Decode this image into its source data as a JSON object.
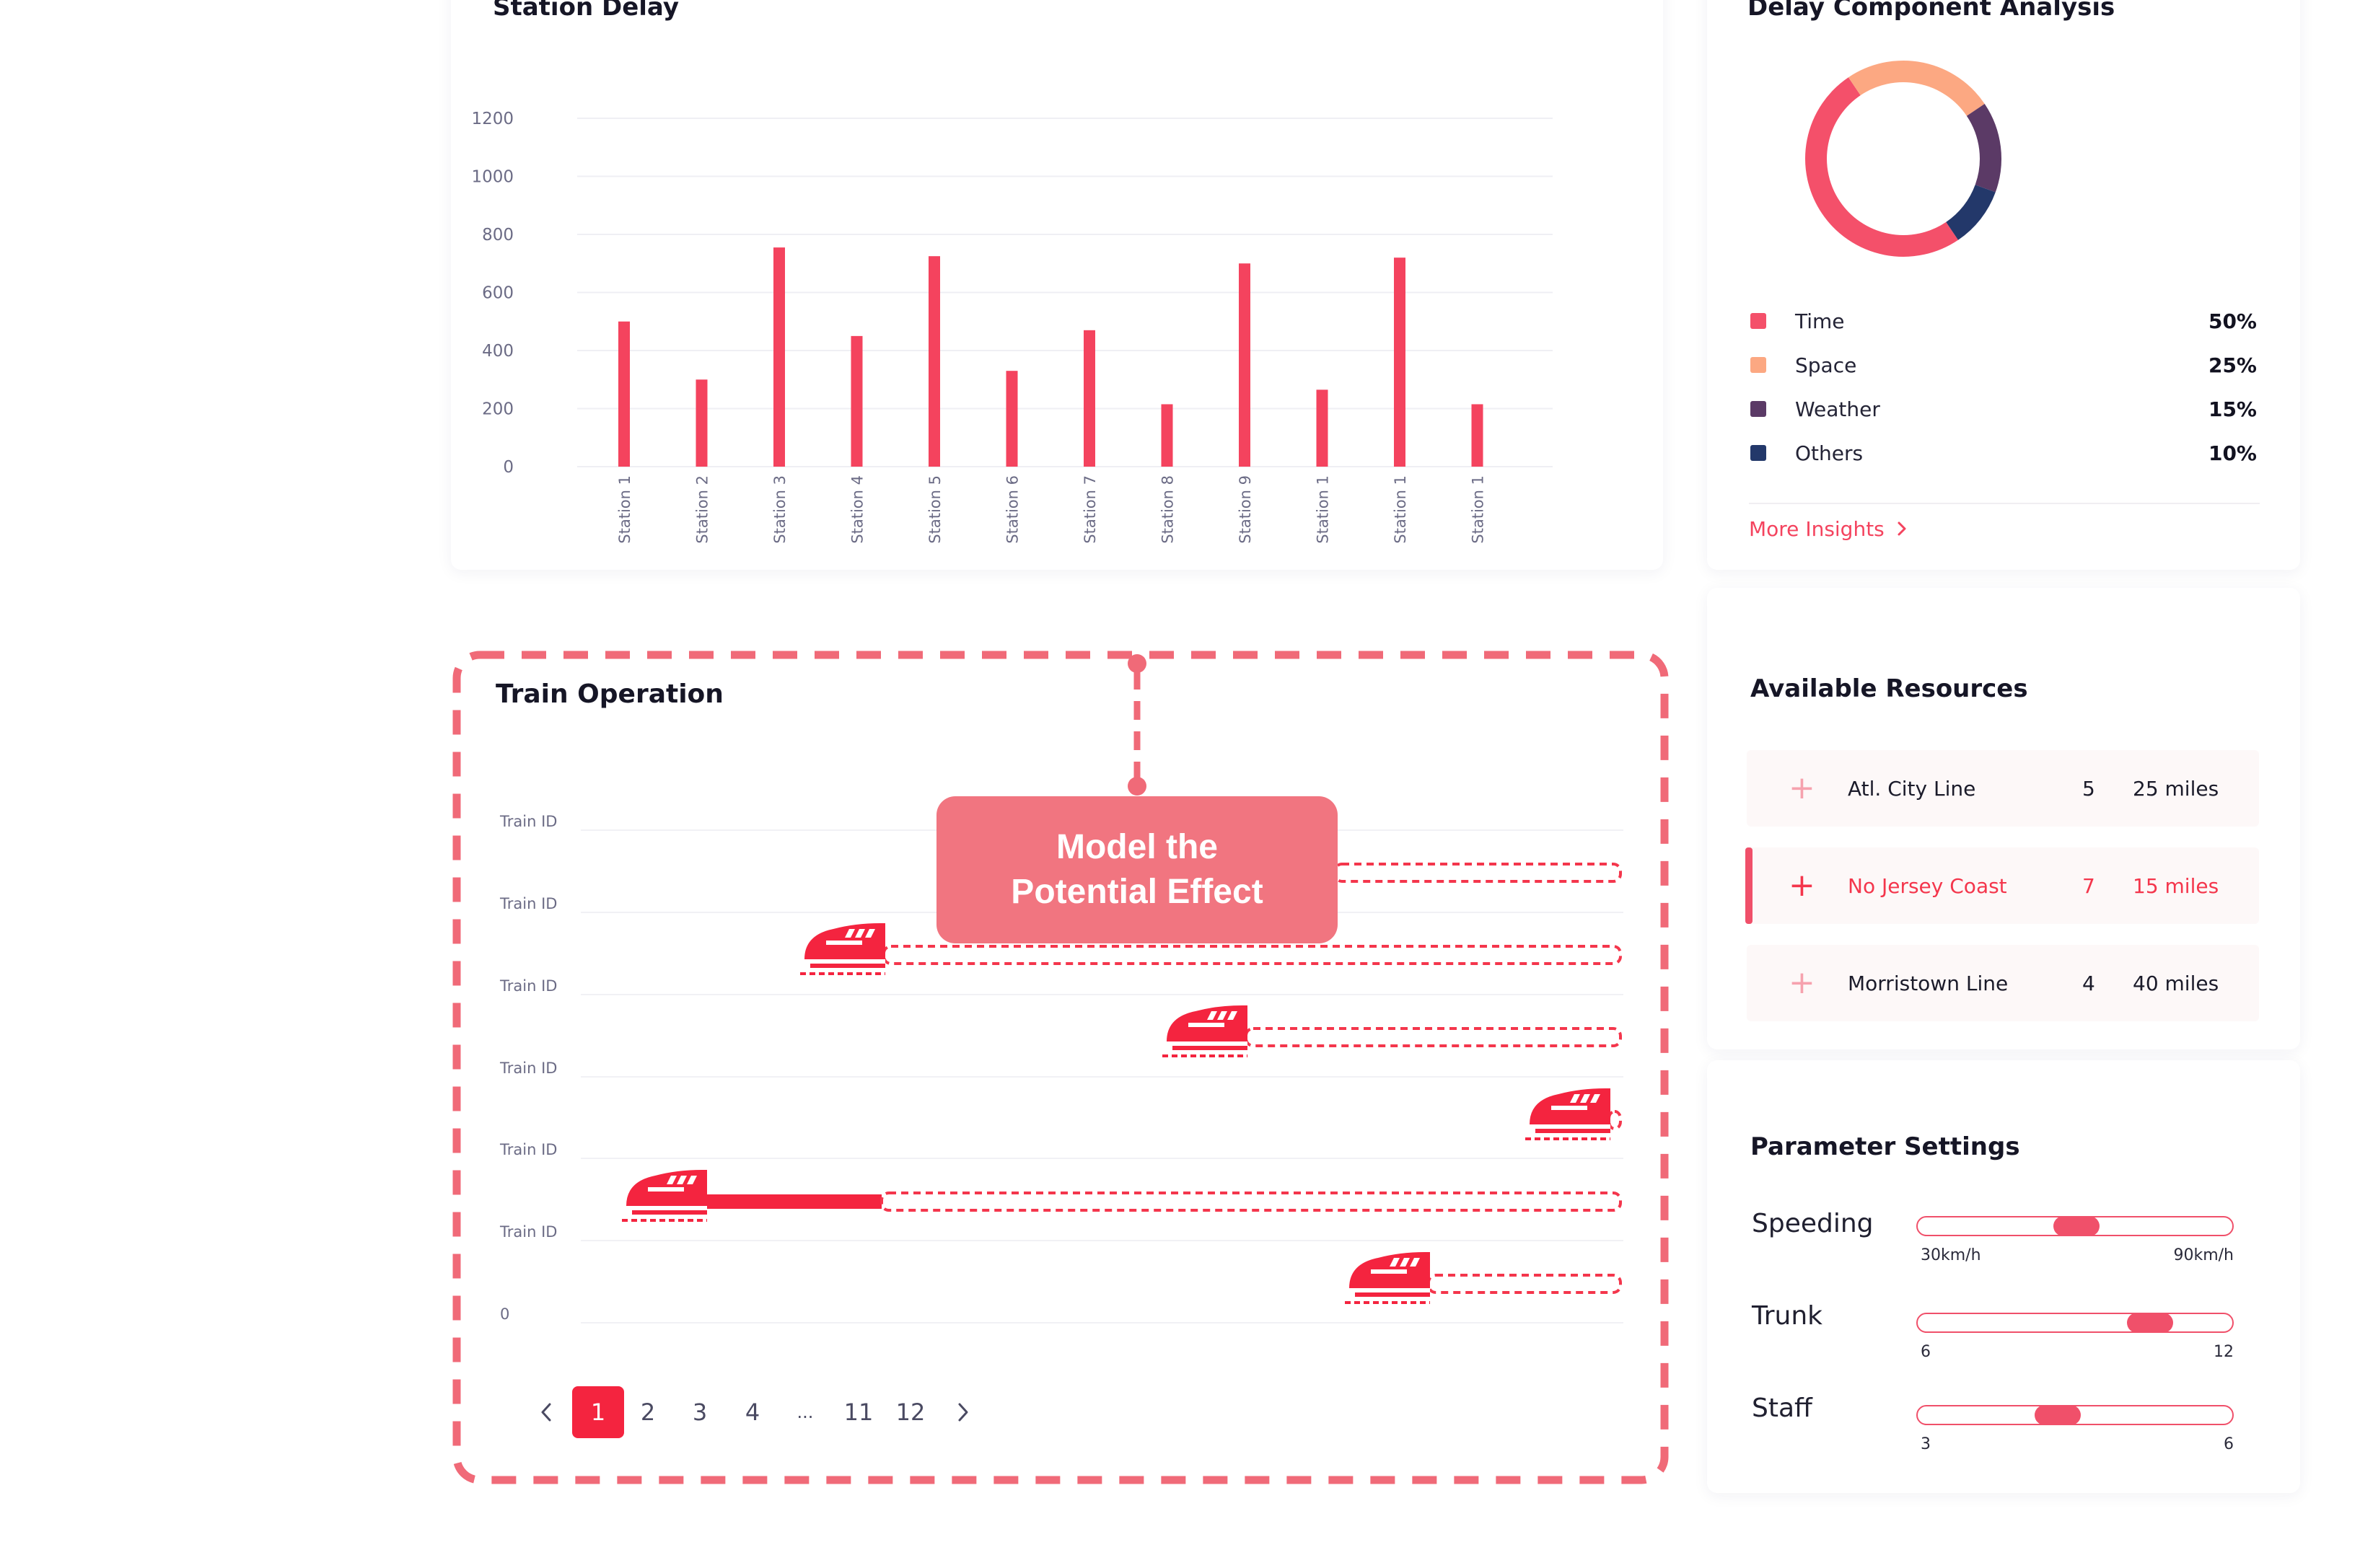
{
  "station_delay": {
    "title": "Station Delay",
    "chart_data": {
      "type": "bar",
      "title": "Station Delay",
      "categories": [
        "Station 1",
        "Station 2",
        "Station 3",
        "Station 4",
        "Station 5",
        "Station 6",
        "Station 7",
        "Station 8",
        "Station 9",
        "Station 1",
        "Station 1",
        "Station 1"
      ],
      "values": [
        500,
        300,
        755,
        450,
        725,
        330,
        470,
        215,
        700,
        265,
        720,
        215
      ],
      "ylim": [
        0,
        1200
      ],
      "yticks": [
        "0",
        "200",
        "400",
        "600",
        "800",
        "1000",
        "1200"
      ],
      "color": "#f4435e"
    }
  },
  "delay_component": {
    "title": "Delay Component Analysis",
    "chart_data": {
      "type": "pie",
      "slices": [
        {
          "name": "Time",
          "value": 50,
          "label": "50%",
          "color": "#f4506a"
        },
        {
          "name": "Space",
          "value": 25,
          "label": "25%",
          "color": "#fca882"
        },
        {
          "name": "Weather",
          "value": 15,
          "label": "15%",
          "color": "#5b3a66"
        },
        {
          "name": "Others",
          "value": 10,
          "label": "10%",
          "color": "#23386a"
        }
      ]
    },
    "more_insights": "More Insights",
    "more_icon": "chevron-right-icon"
  },
  "train_operation": {
    "title": "Train Operation",
    "row_labels": [
      "Train ID",
      "Train ID",
      "Train ID",
      "Train ID",
      "Train ID",
      "Train ID",
      "0"
    ],
    "callout": {
      "line1": "Model the",
      "line2": "Potential Effect"
    },
    "pagination": {
      "prev": "‹",
      "pages": [
        "1",
        "2",
        "3",
        "4",
        "...",
        "11",
        "12"
      ],
      "next": "›",
      "current": "1"
    }
  },
  "resources": {
    "title": "Available Resources",
    "items": [
      {
        "name": "Atl. City Line",
        "count": "5",
        "distance": "25 miles"
      },
      {
        "name": "No Jersey Coast",
        "count": "7",
        "distance": "15 miles"
      },
      {
        "name": "Morristown Line",
        "count": "4",
        "distance": "40 miles"
      }
    ]
  },
  "parameters": {
    "title": "Parameter Settings",
    "items": [
      {
        "label": "Speeding",
        "min": "30km/h",
        "max": "90km/h",
        "value": 0.5
      },
      {
        "label": "Trunk",
        "min": "6",
        "max": "12",
        "value": 0.77
      },
      {
        "label": "Staff",
        "min": "3",
        "max": "6",
        "value": 0.43
      }
    ]
  },
  "colors": {
    "accent": "#f4364c",
    "callout": "#f17580",
    "dashed": "#f06a78"
  }
}
